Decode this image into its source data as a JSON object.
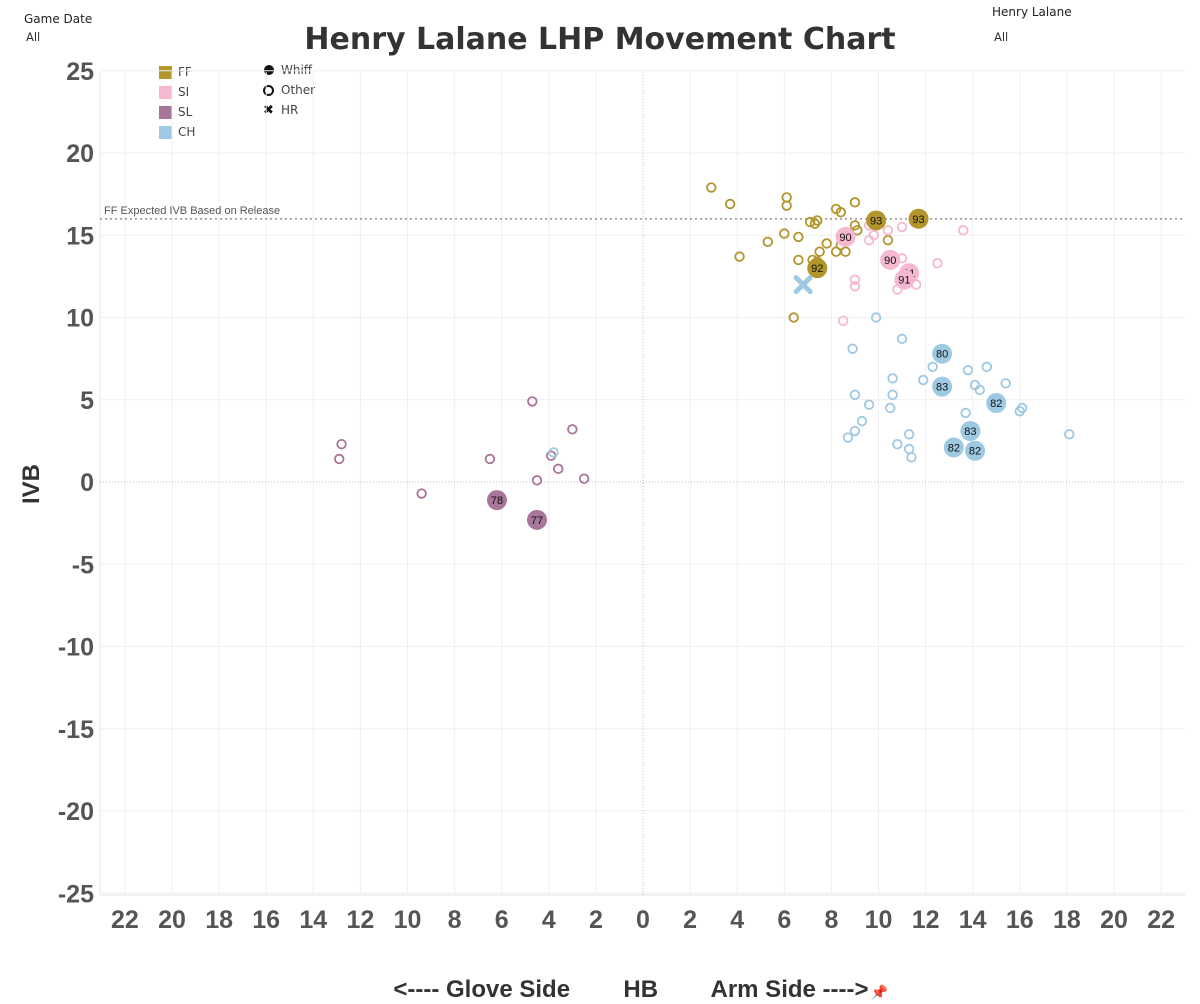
{
  "filters": {
    "game_date": {
      "label": "Game Date",
      "value": "All"
    },
    "pitcher": {
      "label": "Henry Lalane",
      "value": "All"
    }
  },
  "colors": {
    "FF": "#b2962c",
    "SI": "#f5b8d0",
    "SL": "#a87699",
    "CH": "#9ec9e2"
  },
  "chart_data": {
    "type": "scatter",
    "title": "Henry Lalane LHP Movement Chart",
    "xlabel": "<---- Glove Side        HB        Arm Side ---->",
    "ylabel": "IVB",
    "xlim": [
      -23,
      23
    ],
    "ylim": [
      -26,
      26
    ],
    "x_tick_labels": [
      "22",
      "20",
      "18",
      "16",
      "14",
      "12",
      "10",
      "8",
      "6",
      "4",
      "2",
      "0",
      "2",
      "4",
      "6",
      "8",
      "10",
      "12",
      "14",
      "16",
      "18",
      "20",
      "22"
    ],
    "y_ticks": [
      25,
      20,
      15,
      10,
      5,
      0,
      -5,
      -10,
      -15,
      -20,
      -25
    ],
    "grid": true,
    "reference_line": {
      "label": "FF Expected IVB Based on Release",
      "y": 16
    },
    "legend": {
      "pitch_types": [
        {
          "code": "FF",
          "label": "FF"
        },
        {
          "code": "SI",
          "label": "SI"
        },
        {
          "code": "SL",
          "label": "SL"
        },
        {
          "code": "CH",
          "label": "CH"
        }
      ],
      "results": [
        {
          "shape": "filled",
          "label": "Whiff"
        },
        {
          "shape": "open",
          "label": "Other"
        },
        {
          "shape": "x",
          "label": "HR"
        }
      ],
      "placement": "top-left"
    },
    "series": [
      {
        "name": "FF",
        "points": [
          {
            "x": 2.9,
            "y": 17.9,
            "r": "other"
          },
          {
            "x": 3.7,
            "y": 16.9,
            "r": "other"
          },
          {
            "x": 6.1,
            "y": 17.3,
            "r": "other"
          },
          {
            "x": 6.1,
            "y": 16.8,
            "r": "other"
          },
          {
            "x": 9.0,
            "y": 17.0,
            "r": "other"
          },
          {
            "x": 8.2,
            "y": 16.6,
            "r": "other"
          },
          {
            "x": 8.4,
            "y": 16.4,
            "r": "other"
          },
          {
            "x": 7.1,
            "y": 15.8,
            "r": "other"
          },
          {
            "x": 7.4,
            "y": 15.9,
            "r": "other"
          },
          {
            "x": 7.3,
            "y": 15.7,
            "r": "other"
          },
          {
            "x": 9.0,
            "y": 15.6,
            "r": "other"
          },
          {
            "x": 9.1,
            "y": 15.3,
            "r": "other"
          },
          {
            "x": 6.0,
            "y": 15.1,
            "r": "other"
          },
          {
            "x": 6.6,
            "y": 14.9,
            "r": "other"
          },
          {
            "x": 5.3,
            "y": 14.6,
            "r": "other"
          },
          {
            "x": 7.8,
            "y": 14.5,
            "r": "other"
          },
          {
            "x": 8.4,
            "y": 14.4,
            "r": "other"
          },
          {
            "x": 10.4,
            "y": 14.7,
            "r": "other"
          },
          {
            "x": 7.5,
            "y": 14.0,
            "r": "other"
          },
          {
            "x": 8.2,
            "y": 14.0,
            "r": "other"
          },
          {
            "x": 8.6,
            "y": 14.0,
            "r": "other"
          },
          {
            "x": 4.1,
            "y": 13.7,
            "r": "other"
          },
          {
            "x": 6.6,
            "y": 13.5,
            "r": "other"
          },
          {
            "x": 7.2,
            "y": 13.5,
            "r": "other"
          },
          {
            "x": 7.4,
            "y": 13.4,
            "r": "other"
          },
          {
            "x": 6.4,
            "y": 10.0,
            "r": "other"
          },
          {
            "x": 9.9,
            "y": 15.9,
            "r": "whiff",
            "label": "93"
          },
          {
            "x": 11.7,
            "y": 16.0,
            "r": "whiff",
            "label": "93"
          },
          {
            "x": 7.4,
            "y": 13.0,
            "r": "whiff",
            "label": "92"
          }
        ]
      },
      {
        "name": "SI",
        "points": [
          {
            "x": 9.6,
            "y": 15.6,
            "r": "other"
          },
          {
            "x": 11.0,
            "y": 15.5,
            "r": "other"
          },
          {
            "x": 10.4,
            "y": 15.3,
            "r": "other"
          },
          {
            "x": 13.6,
            "y": 15.3,
            "r": "other"
          },
          {
            "x": 9.6,
            "y": 14.7,
            "r": "other"
          },
          {
            "x": 9.8,
            "y": 15.0,
            "r": "other"
          },
          {
            "x": 11.0,
            "y": 13.6,
            "r": "other"
          },
          {
            "x": 12.5,
            "y": 13.3,
            "r": "other"
          },
          {
            "x": 9.0,
            "y": 12.3,
            "r": "other"
          },
          {
            "x": 9.0,
            "y": 11.9,
            "r": "other"
          },
          {
            "x": 11.6,
            "y": 12.0,
            "r": "other"
          },
          {
            "x": 10.8,
            "y": 11.7,
            "r": "other"
          },
          {
            "x": 8.5,
            "y": 9.8,
            "r": "other"
          },
          {
            "x": 8.6,
            "y": 14.9,
            "r": "whiff",
            "label": "90"
          },
          {
            "x": 10.5,
            "y": 13.5,
            "r": "whiff",
            "label": "90"
          },
          {
            "x": 11.3,
            "y": 12.7,
            "r": "whiff",
            "label": "91"
          },
          {
            "x": 11.1,
            "y": 12.3,
            "r": "whiff",
            "label": "91"
          }
        ]
      },
      {
        "name": "SL",
        "points": [
          {
            "x": -12.8,
            "y": 2.3,
            "r": "other"
          },
          {
            "x": -12.9,
            "y": 1.4,
            "r": "other"
          },
          {
            "x": -9.4,
            "y": -0.7,
            "r": "other"
          },
          {
            "x": -4.7,
            "y": 4.9,
            "r": "other"
          },
          {
            "x": -3.0,
            "y": 3.2,
            "r": "other"
          },
          {
            "x": -6.5,
            "y": 1.4,
            "r": "other"
          },
          {
            "x": -3.9,
            "y": 1.6,
            "r": "other"
          },
          {
            "x": -3.6,
            "y": 0.8,
            "r": "other"
          },
          {
            "x": -4.5,
            "y": 0.1,
            "r": "other"
          },
          {
            "x": -2.5,
            "y": 0.2,
            "r": "other"
          },
          {
            "x": -6.2,
            "y": -1.1,
            "r": "whiff",
            "label": "78"
          },
          {
            "x": -4.5,
            "y": -2.3,
            "r": "whiff",
            "label": "77"
          }
        ]
      },
      {
        "name": "CH",
        "points": [
          {
            "x": 9.9,
            "y": 10.0,
            "r": "other"
          },
          {
            "x": 11.0,
            "y": 8.7,
            "r": "other"
          },
          {
            "x": 8.9,
            "y": 8.1,
            "r": "other"
          },
          {
            "x": 12.3,
            "y": 7.0,
            "r": "other"
          },
          {
            "x": 13.8,
            "y": 6.8,
            "r": "other"
          },
          {
            "x": 14.6,
            "y": 7.0,
            "r": "other"
          },
          {
            "x": 10.6,
            "y": 6.3,
            "r": "other"
          },
          {
            "x": 11.9,
            "y": 6.2,
            "r": "other"
          },
          {
            "x": 14.1,
            "y": 5.9,
            "r": "other"
          },
          {
            "x": 14.3,
            "y": 5.6,
            "r": "other"
          },
          {
            "x": 15.4,
            "y": 6.0,
            "r": "other"
          },
          {
            "x": 9.0,
            "y": 5.3,
            "r": "other"
          },
          {
            "x": 10.6,
            "y": 5.3,
            "r": "other"
          },
          {
            "x": 9.6,
            "y": 4.7,
            "r": "other"
          },
          {
            "x": 10.5,
            "y": 4.5,
            "r": "other"
          },
          {
            "x": 13.7,
            "y": 4.2,
            "r": "other"
          },
          {
            "x": 16.0,
            "y": 4.3,
            "r": "other"
          },
          {
            "x": 16.1,
            "y": 4.5,
            "r": "other"
          },
          {
            "x": 9.3,
            "y": 3.7,
            "r": "other"
          },
          {
            "x": 8.7,
            "y": 2.7,
            "r": "other"
          },
          {
            "x": 9.0,
            "y": 3.1,
            "r": "other"
          },
          {
            "x": 11.3,
            "y": 2.9,
            "r": "other"
          },
          {
            "x": 18.1,
            "y": 2.9,
            "r": "other"
          },
          {
            "x": 10.8,
            "y": 2.3,
            "r": "other"
          },
          {
            "x": 11.3,
            "y": 2.0,
            "r": "other"
          },
          {
            "x": 11.4,
            "y": 1.5,
            "r": "other"
          },
          {
            "x": -3.8,
            "y": 1.8,
            "r": "other"
          },
          {
            "x": 12.7,
            "y": 7.8,
            "r": "whiff",
            "label": "80"
          },
          {
            "x": 12.7,
            "y": 5.8,
            "r": "whiff",
            "label": "83"
          },
          {
            "x": 15.0,
            "y": 4.8,
            "r": "whiff",
            "label": "82"
          },
          {
            "x": 13.9,
            "y": 3.1,
            "r": "whiff",
            "label": "83"
          },
          {
            "x": 13.2,
            "y": 2.1,
            "r": "whiff",
            "label": "82"
          },
          {
            "x": 14.1,
            "y": 1.9,
            "r": "whiff",
            "label": "82"
          },
          {
            "x": 6.8,
            "y": 12.0,
            "r": "hr"
          }
        ]
      }
    ]
  }
}
